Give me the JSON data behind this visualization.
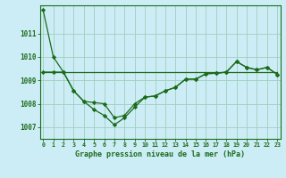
{
  "title": "Graphe pression niveau de la mer (hPa)",
  "bg_color": "#cdedf6",
  "grid_color": "#9ecfbe",
  "line_color": "#1a6b1a",
  "x_labels": [
    "0",
    "1",
    "2",
    "3",
    "4",
    "5",
    "6",
    "7",
    "8",
    "9",
    "10",
    "11",
    "12",
    "13",
    "14",
    "15",
    "16",
    "17",
    "18",
    "19",
    "20",
    "21",
    "22",
    "23"
  ],
  "ylim": [
    1006.5,
    1012.2
  ],
  "yticks": [
    1007,
    1008,
    1009,
    1010,
    1011
  ],
  "series": {
    "line1": [
      1012.0,
      1010.0,
      1009.35,
      1008.55,
      1008.1,
      1008.05,
      1008.0,
      1007.4,
      1007.5,
      1008.0,
      1008.28,
      1008.33,
      1008.55,
      1008.7,
      1009.05,
      1009.05,
      1009.28,
      1009.3,
      1009.35,
      1009.8,
      1009.55,
      1009.45,
      1009.55,
      1009.25
    ],
    "line2": [
      1009.35,
      1009.35,
      1009.35,
      1008.55,
      1008.1,
      1007.75,
      1007.5,
      1007.1,
      1007.4,
      1007.85,
      1008.28,
      1008.33,
      1008.55,
      1008.7,
      1009.05,
      1009.05,
      1009.28,
      1009.3,
      1009.35,
      1009.8,
      1009.55,
      1009.45,
      1009.55,
      1009.25
    ],
    "line3": [
      1009.35,
      1009.35,
      1009.35,
      1009.35,
      1009.35,
      1009.35,
      1009.35,
      1009.35,
      1009.35,
      1009.35,
      1009.35,
      1009.35,
      1009.35,
      1009.35,
      1009.35,
      1009.35,
      1009.35,
      1009.35,
      1009.35,
      1009.35,
      1009.35,
      1009.35,
      1009.35,
      1009.35
    ]
  }
}
